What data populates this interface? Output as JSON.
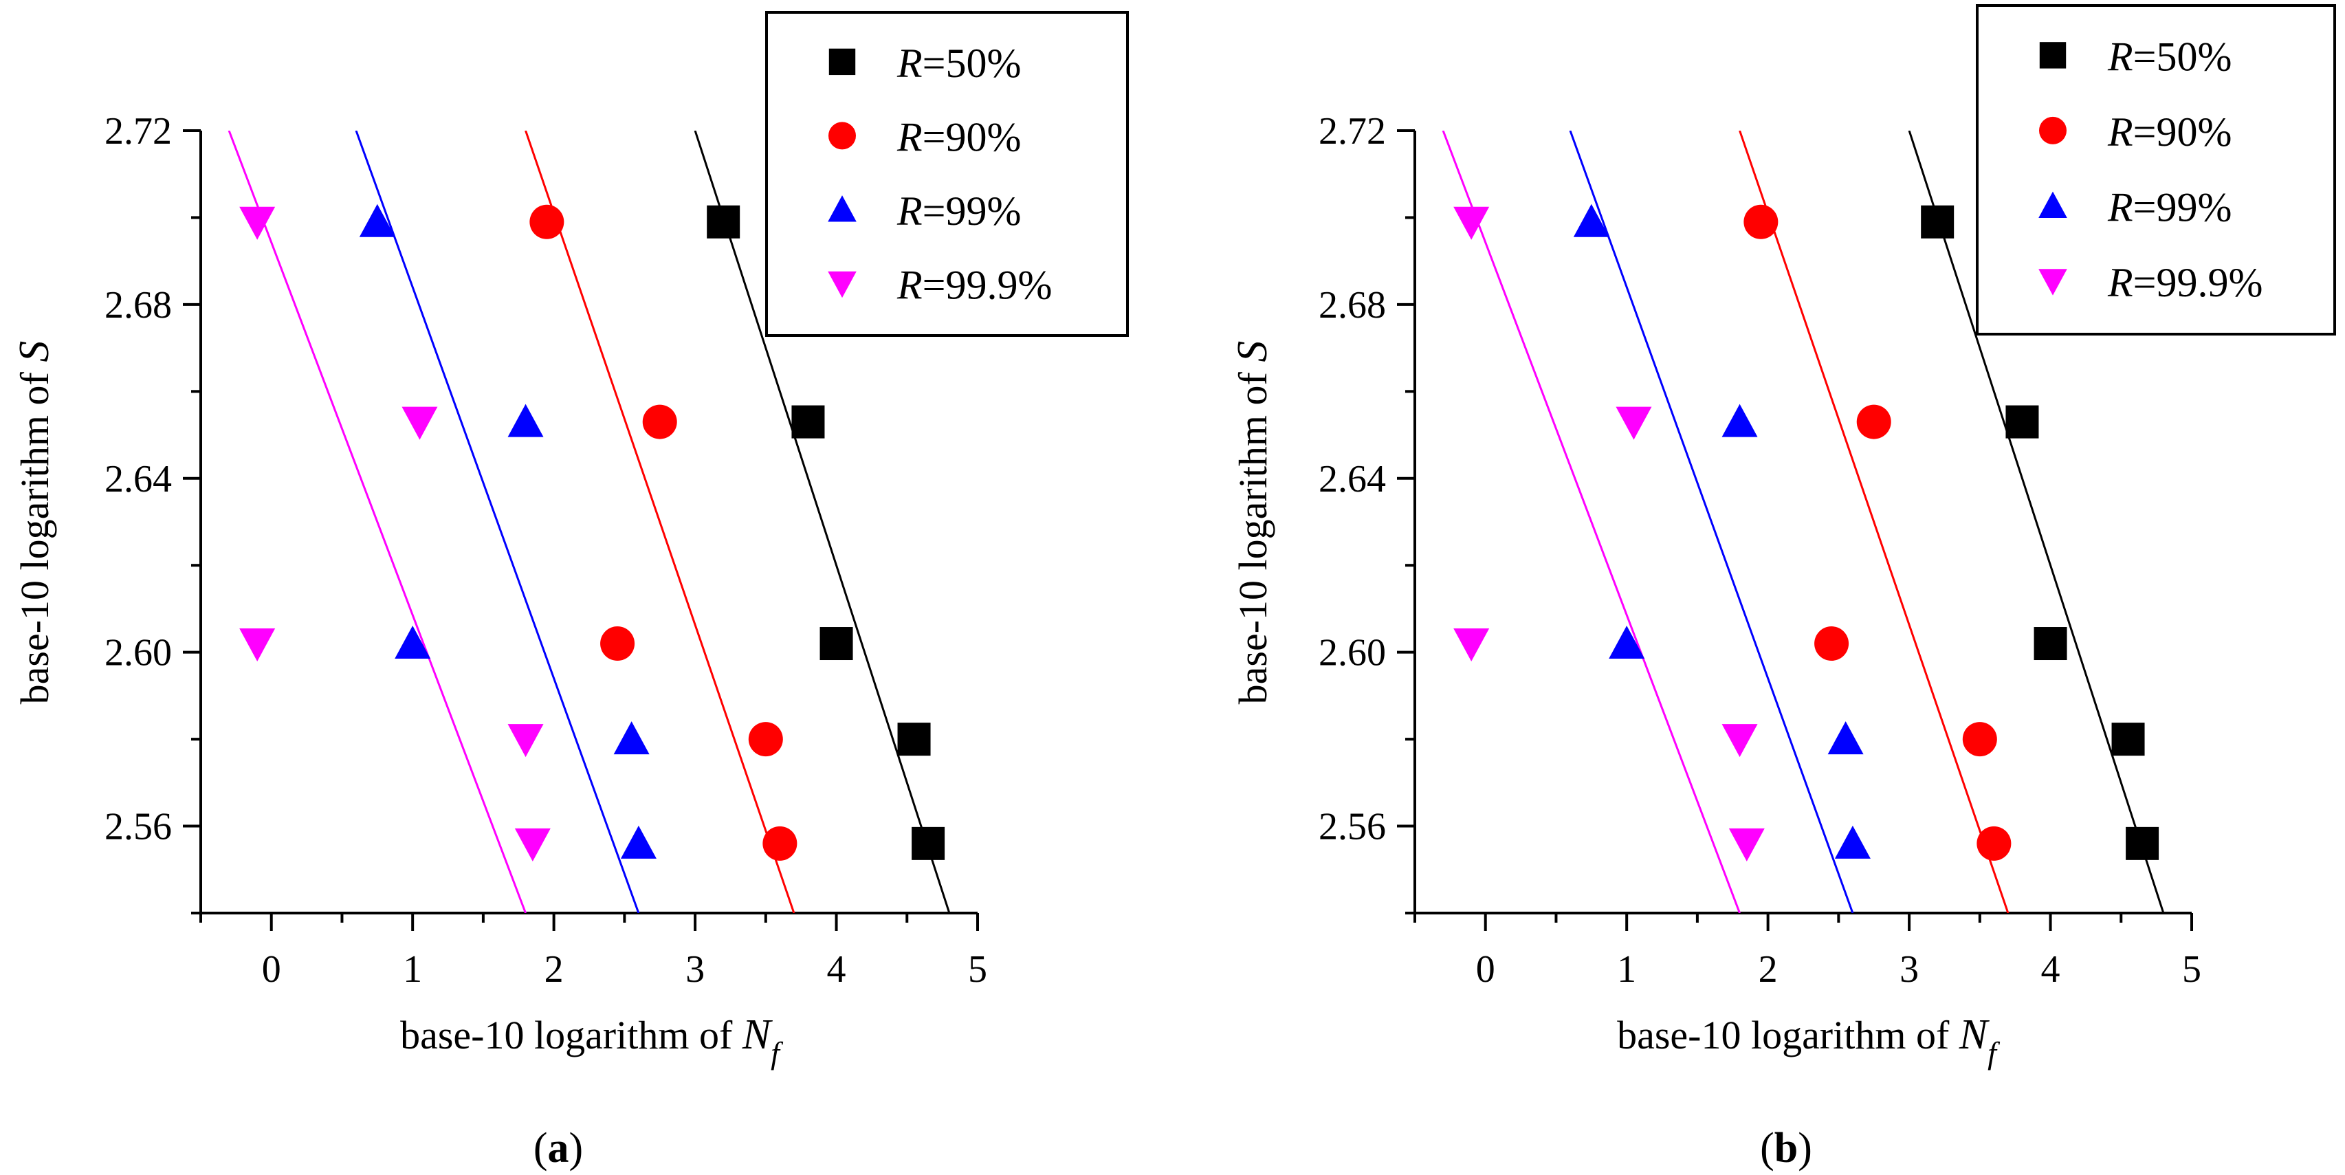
{
  "figure": {
    "panels": [
      "(a)",
      "(b)"
    ]
  },
  "chart_data": [
    {
      "type": "scatter",
      "panel_label": "(a)",
      "panel_letter": "a",
      "xlabel_prefix": "base-10 logarithm of ",
      "xlabel_var": "N",
      "xlabel_sub": "f",
      "ylabel_prefix": "base-10 logarithm of ",
      "ylabel_var": "S",
      "xlim": [
        -0.5,
        5
      ],
      "ylim": [
        2.54,
        2.72
      ],
      "x_ticks": [
        0,
        1,
        2,
        3,
        4,
        5
      ],
      "y_ticks": [
        2.56,
        2.6,
        2.64,
        2.68,
        2.72
      ],
      "y_tick_labels": [
        "2.56",
        "2.60",
        "2.64",
        "2.68",
        "2.72"
      ],
      "legend_position": "top-right",
      "series": [
        {
          "name": "R=50%",
          "label_var": "R",
          "label_value": "=50%",
          "marker": "square",
          "color": "#000000",
          "x": [
            3.2,
            3.8,
            4.0,
            4.55,
            4.65
          ],
          "y": [
            2.699,
            2.653,
            2.602,
            2.58,
            2.556
          ],
          "fit_line": {
            "x": [
              3.0,
              4.8
            ],
            "y": [
              2.72,
              2.54
            ]
          }
        },
        {
          "name": "R=90%",
          "label_var": "R",
          "label_value": "=90%",
          "marker": "circle",
          "color": "#ff0000",
          "x": [
            1.95,
            2.75,
            2.45,
            3.5,
            3.6
          ],
          "y": [
            2.699,
            2.653,
            2.602,
            2.58,
            2.556
          ],
          "fit_line": {
            "x": [
              1.8,
              3.7
            ],
            "y": [
              2.72,
              2.54
            ]
          }
        },
        {
          "name": "R=99%",
          "label_var": "R",
          "label_value": "=99%",
          "marker": "triangle-up",
          "color": "#0000ff",
          "x": [
            0.75,
            1.8,
            1.0,
            2.55,
            2.6
          ],
          "y": [
            2.699,
            2.653,
            2.602,
            2.58,
            2.556
          ],
          "fit_line": {
            "x": [
              0.6,
              2.6
            ],
            "y": [
              2.72,
              2.54
            ]
          }
        },
        {
          "name": "R=99.9%",
          "label_var": "R",
          "label_value": "=99.9%",
          "marker": "triangle-down",
          "color": "#ff00ff",
          "x": [
            -0.1,
            1.05,
            -0.1,
            1.8,
            1.85
          ],
          "y": [
            2.699,
            2.653,
            2.602,
            2.58,
            2.556
          ],
          "fit_line": {
            "x": [
              -0.3,
              1.8
            ],
            "y": [
              2.72,
              2.54
            ]
          }
        }
      ]
    },
    {
      "type": "scatter",
      "panel_label": "(b)",
      "panel_letter": "b",
      "xlabel_prefix": "base-10 logarithm of ",
      "xlabel_var": "N",
      "xlabel_sub": "f",
      "ylabel_prefix": "base-10 logarithm of ",
      "ylabel_var": "S",
      "xlim": [
        -0.5,
        5
      ],
      "ylim": [
        2.54,
        2.72
      ],
      "x_ticks": [
        0,
        1,
        2,
        3,
        4,
        5
      ],
      "y_ticks": [
        2.56,
        2.6,
        2.64,
        2.68,
        2.72
      ],
      "y_tick_labels": [
        "2.56",
        "2.60",
        "2.64",
        "2.68",
        "2.72"
      ],
      "legend_position": "top-right",
      "series": [
        {
          "name": "R=50%",
          "label_var": "R",
          "label_value": "=50%",
          "marker": "square",
          "color": "#000000",
          "x": [
            3.2,
            3.8,
            4.0,
            4.55,
            4.65
          ],
          "y": [
            2.699,
            2.653,
            2.602,
            2.58,
            2.556
          ],
          "fit_line": {
            "x": [
              3.0,
              4.8
            ],
            "y": [
              2.72,
              2.54
            ]
          }
        },
        {
          "name": "R=90%",
          "label_var": "R",
          "label_value": "=90%",
          "marker": "circle",
          "color": "#ff0000",
          "x": [
            1.95,
            2.75,
            2.45,
            3.5,
            3.6
          ],
          "y": [
            2.699,
            2.653,
            2.602,
            2.58,
            2.556
          ],
          "fit_line": {
            "x": [
              1.8,
              3.7
            ],
            "y": [
              2.72,
              2.54
            ]
          }
        },
        {
          "name": "R=99%",
          "label_var": "R",
          "label_value": "=99%",
          "marker": "triangle-up",
          "color": "#0000ff",
          "x": [
            0.75,
            1.8,
            1.0,
            2.55,
            2.6
          ],
          "y": [
            2.699,
            2.653,
            2.602,
            2.58,
            2.556
          ],
          "fit_line": {
            "x": [
              0.6,
              2.6
            ],
            "y": [
              2.72,
              2.54
            ]
          }
        },
        {
          "name": "R=99.9%",
          "label_var": "R",
          "label_value": "=99.9%",
          "marker": "triangle-down",
          "color": "#ff00ff",
          "x": [
            -0.1,
            1.05,
            -0.1,
            1.8,
            1.85
          ],
          "y": [
            2.699,
            2.653,
            2.602,
            2.58,
            2.556
          ],
          "fit_line": {
            "x": [
              -0.3,
              1.8
            ],
            "y": [
              2.72,
              2.54
            ]
          }
        }
      ]
    }
  ]
}
